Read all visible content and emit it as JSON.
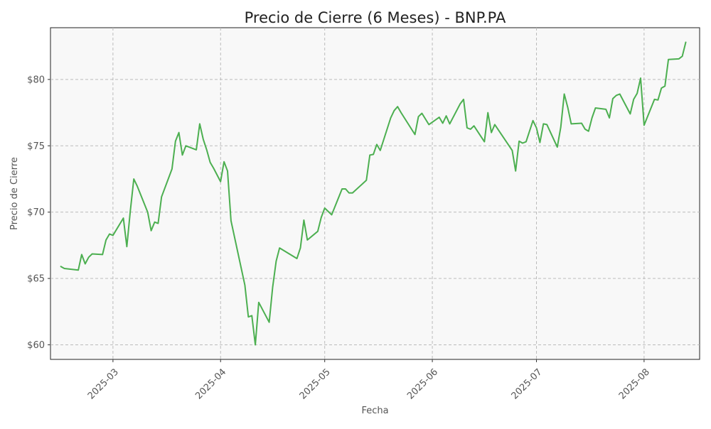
{
  "chart_data": {
    "type": "line",
    "title": "Precio de Cierre (6 Meses) - BNP.PA",
    "xlabel": "Fecha",
    "ylabel": "Precio de Cierre",
    "ylim": [
      58.9,
      83.9
    ],
    "xlim": [
      "2025-02-11",
      "2025-08-17"
    ],
    "y_ticks": [
      60,
      65,
      70,
      75,
      80
    ],
    "y_tick_labels": [
      "$60",
      "$65",
      "$70",
      "$75",
      "$80"
    ],
    "x_ticks": [
      "2025-03-01",
      "2025-04-01",
      "2025-05-01",
      "2025-06-01",
      "2025-07-01",
      "2025-08-01"
    ],
    "x_tick_labels": [
      "2025-03",
      "2025-04",
      "2025-05",
      "2025-06",
      "2025-07",
      "2025-08"
    ],
    "grid": true,
    "line_color": "#4caf50",
    "background": "#f8f8f8",
    "series": [
      {
        "x": [
          "2025-02-14",
          "2025-02-15",
          "2025-02-19",
          "2025-02-20",
          "2025-02-21",
          "2025-02-22",
          "2025-02-23",
          "2025-02-26",
          "2025-02-27",
          "2025-02-28",
          "2025-03-01",
          "2025-03-04",
          "2025-03-05",
          "2025-03-06",
          "2025-03-07",
          "2025-03-08",
          "2025-03-11",
          "2025-03-12",
          "2025-03-13",
          "2025-03-14",
          "2025-03-15",
          "2025-03-18",
          "2025-03-19",
          "2025-03-20",
          "2025-03-21",
          "2025-03-22",
          "2025-03-25",
          "2025-03-26",
          "2025-03-27",
          "2025-03-28",
          "2025-03-29",
          "2025-03-30",
          "2025-04-01",
          "2025-04-02",
          "2025-04-03",
          "2025-04-04",
          "2025-04-08",
          "2025-04-09",
          "2025-04-10",
          "2025-04-11",
          "2025-04-12",
          "2025-04-15",
          "2025-04-16",
          "2025-04-17",
          "2025-04-18",
          "2025-04-23",
          "2025-04-24",
          "2025-04-25",
          "2025-04-26",
          "2025-04-29",
          "2025-04-30",
          "2025-05-01",
          "2025-05-03",
          "2025-05-06",
          "2025-05-07",
          "2025-05-08",
          "2025-05-09",
          "2025-05-13",
          "2025-05-14",
          "2025-05-15",
          "2025-05-16",
          "2025-05-17",
          "2025-05-20",
          "2025-05-21",
          "2025-05-22",
          "2025-05-23",
          "2025-05-27",
          "2025-05-28",
          "2025-05-29",
          "2025-05-31",
          "2025-06-03",
          "2025-06-04",
          "2025-06-05",
          "2025-06-06",
          "2025-06-09",
          "2025-06-10",
          "2025-06-11",
          "2025-06-12",
          "2025-06-13",
          "2025-06-16",
          "2025-06-17",
          "2025-06-18",
          "2025-06-19",
          "2025-06-24",
          "2025-06-25",
          "2025-06-26",
          "2025-06-27",
          "2025-06-28",
          "2025-06-30",
          "2025-07-01",
          "2025-07-02",
          "2025-07-03",
          "2025-07-04",
          "2025-07-07",
          "2025-07-08",
          "2025-07-09",
          "2025-07-10",
          "2025-07-11",
          "2025-07-14",
          "2025-07-15",
          "2025-07-16",
          "2025-07-17",
          "2025-07-18",
          "2025-07-21",
          "2025-07-22",
          "2025-07-23",
          "2025-07-24",
          "2025-07-25",
          "2025-07-28",
          "2025-07-29",
          "2025-07-30",
          "2025-07-31",
          "2025-08-01",
          "2025-08-04",
          "2025-08-05",
          "2025-08-06",
          "2025-08-07",
          "2025-08-08",
          "2025-08-11",
          "2025-08-12",
          "2025-08-13"
        ],
        "values": [
          65.9,
          65.75,
          65.63,
          66.8,
          66.1,
          66.6,
          66.85,
          66.8,
          67.9,
          68.35,
          68.25,
          69.55,
          67.4,
          70.1,
          72.5,
          71.95,
          70.0,
          68.6,
          69.25,
          69.15,
          71.15,
          73.25,
          75.35,
          76.0,
          74.3,
          75.0,
          74.7,
          76.65,
          75.5,
          74.7,
          73.75,
          73.3,
          72.3,
          73.8,
          73.1,
          69.35,
          64.5,
          62.1,
          62.2,
          60.0,
          63.2,
          61.7,
          64.35,
          66.3,
          67.3,
          66.5,
          67.3,
          69.4,
          67.9,
          68.55,
          69.6,
          70.3,
          69.8,
          71.75,
          71.75,
          71.45,
          71.45,
          72.4,
          74.3,
          74.35,
          75.1,
          74.65,
          77.1,
          77.65,
          77.95,
          77.5,
          75.85,
          77.2,
          77.45,
          76.6,
          77.15,
          76.7,
          77.25,
          76.65,
          78.15,
          78.5,
          76.35,
          76.25,
          76.5,
          75.3,
          77.5,
          76.0,
          76.6,
          74.65,
          73.1,
          75.35,
          75.2,
          75.3,
          76.9,
          76.35,
          75.25,
          76.65,
          76.6,
          74.9,
          76.4,
          78.9,
          77.9,
          76.65,
          76.7,
          76.25,
          76.1,
          77.1,
          77.85,
          77.75,
          77.1,
          78.55,
          78.8,
          78.9,
          77.4,
          78.5,
          78.95,
          80.1,
          76.55,
          78.5,
          78.45,
          79.35,
          79.5,
          81.5,
          81.55,
          81.75,
          82.8
        ]
      }
    ]
  }
}
